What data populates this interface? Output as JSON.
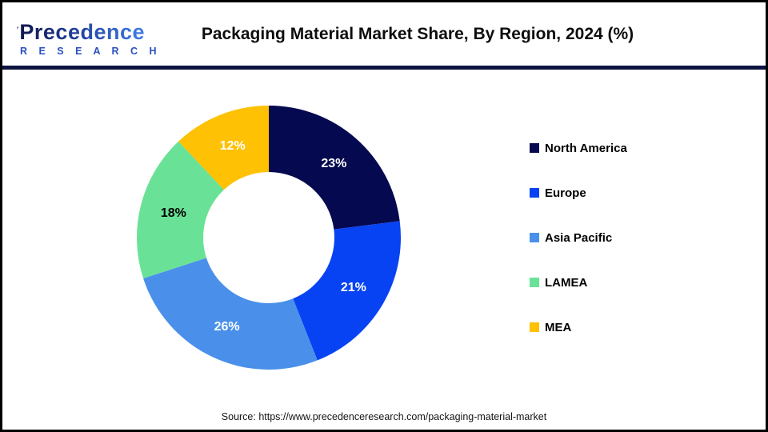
{
  "header": {
    "logo_line1": "Precedence",
    "logo_line2": "R E S E A R C H",
    "title": "Packaging Material Market Share, By Region, 2024 (%)"
  },
  "footer": {
    "source": "Source: https://www.precedenceresearch.com/packaging-material-market"
  },
  "colors": {
    "divider": "#0d1440",
    "frame_border": "#000000",
    "logo_dark": "#10164e",
    "logo_light": "#3f7de6"
  },
  "chart_data": {
    "type": "pie",
    "subtype": "donut",
    "title": "Packaging Material Market Share, By Region, 2024 (%)",
    "categories": [
      "North America",
      "Europe",
      "Asia Pacific",
      "LAMEA",
      "MEA"
    ],
    "values": [
      23,
      21,
      26,
      18,
      12
    ],
    "data_labels": [
      "23%",
      "21%",
      "26%",
      "18%",
      "12%"
    ],
    "colors": [
      "#05094f",
      "#0743f2",
      "#4a90ea",
      "#69e297",
      "#fec103"
    ],
    "data_label_colors": [
      "#ffffff",
      "#ffffff",
      "#ffffff",
      "#000000",
      "#ffffff"
    ],
    "start_angle_deg": 0,
    "direction": "clockwise",
    "inner_radius_ratio": 0.5,
    "legend_position": "right",
    "grid": false
  }
}
